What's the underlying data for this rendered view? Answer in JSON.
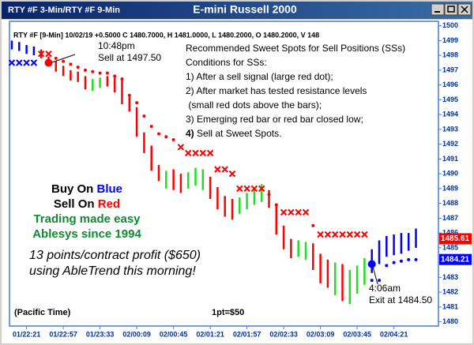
{
  "chart_data": {
    "type": "ohlc",
    "window_title": "RTY #F 3-Min/RTY #F 9-Min",
    "title": "E-mini Russell 2000",
    "header": "RTY #F [9-Min] 10/02/19 +0.5000 C 1480.7000, H 1481.0000, L 1480.2000, O 1480.2000, V 148",
    "categories": [
      null,
      null,
      "01/22:21",
      null,
      null,
      null,
      null,
      "01/22:57",
      null,
      null,
      null,
      null,
      "01/23:33",
      null,
      null,
      null,
      null,
      "02/00:09",
      null,
      null,
      null,
      null,
      "02/00:45",
      null,
      null,
      null,
      null,
      "02/01:21",
      null,
      null,
      null,
      null,
      "02/01:57",
      null,
      null,
      null,
      null,
      "02/02:33",
      null,
      null,
      null,
      null,
      "02/03:09",
      null,
      null,
      null,
      null,
      "02/03:45",
      null,
      null,
      null,
      null,
      "02/04:21",
      null,
      null,
      null
    ],
    "bars": {
      "high": [
        1499.0,
        1498.9,
        1498.7,
        1498.6,
        1498.4,
        1497.9,
        1497.6,
        1497.3,
        1497.0,
        1496.9,
        1496.6,
        1496.4,
        1496.5,
        1496.6,
        1496.5,
        1496.5,
        1495.2,
        1494.5,
        1492.8,
        1491.9,
        1490.6,
        1490.2,
        1490.3,
        1490.0,
        1490.1,
        1490.4,
        1490.3,
        1489.8,
        1489.1,
        1488.5,
        1488.3,
        1488.4,
        1488.7,
        1489.0,
        1489.3,
        1488.9,
        1487.8,
        1486.5,
        1485.6,
        1485.5,
        1485.4,
        1485.3,
        1484.6,
        1484.2,
        1484.0,
        1483.9,
        1483.5,
        1483.8,
        1484.3,
        1484.9,
        1485.5,
        1485.8,
        1485.9,
        1486.0,
        1486.0,
        1486.3
      ],
      "low": [
        1498.4,
        1498.3,
        1498.1,
        1498.0,
        1497.8,
        1497.3,
        1496.9,
        1496.6,
        1496.3,
        1496.2,
        1495.7,
        1495.6,
        1495.8,
        1495.9,
        1495.5,
        1494.7,
        1494.2,
        1492.5,
        1491.4,
        1490.2,
        1489.5,
        1489.0,
        1488.9,
        1488.7,
        1489.0,
        1489.2,
        1488.9,
        1488.3,
        1487.6,
        1487.1,
        1486.9,
        1487.3,
        1487.6,
        1487.9,
        1488.1,
        1487.7,
        1485.9,
        1484.9,
        1484.3,
        1484.4,
        1484.2,
        1483.5,
        1482.6,
        1482.3,
        1481.8,
        1481.4,
        1481.2,
        1481.9,
        1482.5,
        1483.3,
        1483.9,
        1484.4,
        1484.5,
        1484.6,
        1484.8,
        1485.0
      ],
      "colors": [
        "#0000ff",
        "#0000ff",
        "#0000ff",
        "#0000ff",
        "#ff0000",
        "#ff0000",
        "#ff0000",
        "#ff0000",
        "#ff0000",
        "#ff0000",
        "#ff0000",
        "#22dd22",
        "#22dd22",
        "#ff0000",
        "#ff0000",
        "#ff0000",
        "#ff0000",
        "#ff0000",
        "#ff0000",
        "#ff0000",
        "#ff0000",
        "#22dd22",
        "#ff0000",
        "#ff0000",
        "#22dd22",
        "#22dd22",
        "#22dd22",
        "#ff0000",
        "#ff0000",
        "#ff0000",
        "#ff0000",
        "#22dd22",
        "#22dd22",
        "#22dd22",
        "#22dd22",
        "#ff0000",
        "#ff0000",
        "#ff0000",
        "#ff0000",
        "#22dd22",
        "#22dd22",
        "#ff0000",
        "#ff0000",
        "#ff0000",
        "#22dd22",
        "#ff0000",
        "#22dd22",
        "#22dd22",
        "#22dd22",
        "#0000ff",
        "#0000ff",
        "#0000ff",
        "#0000ff",
        "#0000ff",
        "#0000ff",
        "#0000ff"
      ]
    },
    "stops": {
      "values": [
        1497.5,
        1497.5,
        1497.5,
        1497.5,
        1498.1,
        1498.1,
        1497.8,
        1497.6,
        1497.4,
        1497.2,
        1497.0,
        1496.9,
        1496.8,
        1496.8,
        1496.6,
        1496.4,
        1495.3,
        1494.8,
        1493.9,
        1493.2,
        1492.7,
        1492.5,
        1492.3,
        1491.8,
        1491.4,
        1491.4,
        1491.4,
        1491.4,
        1490.3,
        1490.3,
        1490.0,
        1489.0,
        1489.0,
        1489.0,
        1489.0,
        1488.6,
        1487.9,
        1487.4,
        1487.4,
        1487.4,
        1487.4,
        1486.5,
        1485.9,
        1485.9,
        1485.9,
        1485.9,
        1485.9,
        1485.9,
        1485.9,
        1482.8,
        1482.8,
        1483.8,
        1484.0,
        1484.1,
        1484.2,
        1484.2
      ],
      "colors": [
        "#0000ff",
        "#0000ff",
        "#0000ff",
        "#0000ff",
        "#ff0000",
        "#ff0000",
        "#ff0000",
        "#ff0000",
        "#ff0000",
        "#ff0000",
        "#ff0000",
        "#ff0000",
        "#ff0000",
        "#ff0000",
        "#ff0000",
        "#ff0000",
        "#ff0000",
        "#ff0000",
        "#ff0000",
        "#ff0000",
        "#ff0000",
        "#ff0000",
        "#ff0000",
        "#ff0000",
        "#ff0000",
        "#ff0000",
        "#ff0000",
        "#ff0000",
        "#ff0000",
        "#ff0000",
        "#ff0000",
        "#ff0000",
        "#ff0000",
        "#ff0000",
        "#ff0000",
        "#ff0000",
        "#ff0000",
        "#ff0000",
        "#ff0000",
        "#ff0000",
        "#ff0000",
        "#ff0000",
        "#ff0000",
        "#ff0000",
        "#ff0000",
        "#ff0000",
        "#ff0000",
        "#ff0000",
        "#ff0000",
        "#0000ff",
        "#0000ff",
        "#0000ff",
        "#0000ff",
        "#0000ff",
        "#0000ff",
        "#0000ff"
      ],
      "shapes": [
        "x",
        "x",
        "x",
        "x",
        "x",
        "x",
        "dot",
        "dot",
        "dot",
        "dot",
        "dot",
        "dot",
        "dot",
        "dot",
        "dot",
        "dot",
        "dot",
        "dot",
        "dot",
        "dot",
        "dot",
        "dot",
        "dot",
        "x",
        "x",
        "x",
        "x",
        "x",
        "x",
        "x",
        "x",
        "x",
        "x",
        "x",
        "x",
        "dot",
        "dot",
        "x",
        "x",
        "x",
        "x",
        "dot",
        "x",
        "x",
        "x",
        "x",
        "x",
        "x",
        "x",
        "dot",
        "dot",
        "dot",
        "dot",
        "dot",
        "dot",
        "dot"
      ]
    },
    "sell_signal": {
      "color": "#ff0000",
      "values": [
        null,
        null,
        null,
        null,
        null,
        1497.5,
        null,
        null,
        null,
        null,
        null,
        null,
        null,
        null,
        null,
        null,
        null,
        null,
        null,
        null,
        null,
        null,
        null,
        null,
        null,
        null,
        null,
        null,
        null,
        null,
        null,
        null,
        null,
        null,
        null,
        null,
        null,
        null,
        null,
        null,
        null,
        null,
        null,
        null,
        null,
        null,
        null,
        null,
        null,
        null,
        null,
        null,
        null,
        null,
        null,
        null
      ]
    },
    "buy_signal": {
      "color": "#0000ff",
      "values": [
        null,
        null,
        null,
        null,
        null,
        null,
        null,
        null,
        null,
        null,
        null,
        null,
        null,
        null,
        null,
        null,
        null,
        null,
        null,
        null,
        null,
        null,
        null,
        null,
        null,
        null,
        null,
        null,
        null,
        null,
        null,
        null,
        null,
        null,
        null,
        null,
        null,
        null,
        null,
        null,
        null,
        null,
        null,
        null,
        null,
        null,
        null,
        null,
        null,
        1483.9,
        null,
        null,
        null,
        null,
        null,
        null
      ]
    },
    "price_labels": [
      {
        "value": 1485.61,
        "color": "#ff0000"
      },
      {
        "value": 1484.21,
        "color": "#0000ff"
      }
    ],
    "ylim": [
      1479.5,
      1500.3
    ],
    "yticks": [
      1480,
      1481,
      1482,
      1483,
      1484,
      1485,
      1486,
      1487,
      1488,
      1489,
      1490,
      1491,
      1492,
      1493,
      1494,
      1495,
      1496,
      1497,
      1498,
      1499,
      1500
    ],
    "annotations": {
      "sell_time": "10:48pm",
      "sell_price": "Sell at 1497.50",
      "exit_time": "4:06am",
      "exit_price": "Exit at 1484.50",
      "notes": [
        "Recommended Sweet Spots for Sell Positions (SSs)",
        "Conditions for SSs:",
        "1) After a sell signal (large red dot);",
        "2) After market has tested resistance levels",
        " (small red dots above the bars);",
        "3) Emerging red bar or red bar closed low;"
      ],
      "note_last_num": "4)",
      "note_last_text": "Sell at Sweet Spots.",
      "buy_on": "Buy On",
      "blue": "Blue",
      "sell_on": "Sell On",
      "red": "Red",
      "tagline1": "Trading made easy",
      "tagline2": "Ablesys since 1994",
      "profit1": "13 points/contract profit ($650)",
      "profit2": "using AbleTrend this morning!",
      "timezone": "(Pacific Time)",
      "point_value": "1pt=$50"
    }
  }
}
